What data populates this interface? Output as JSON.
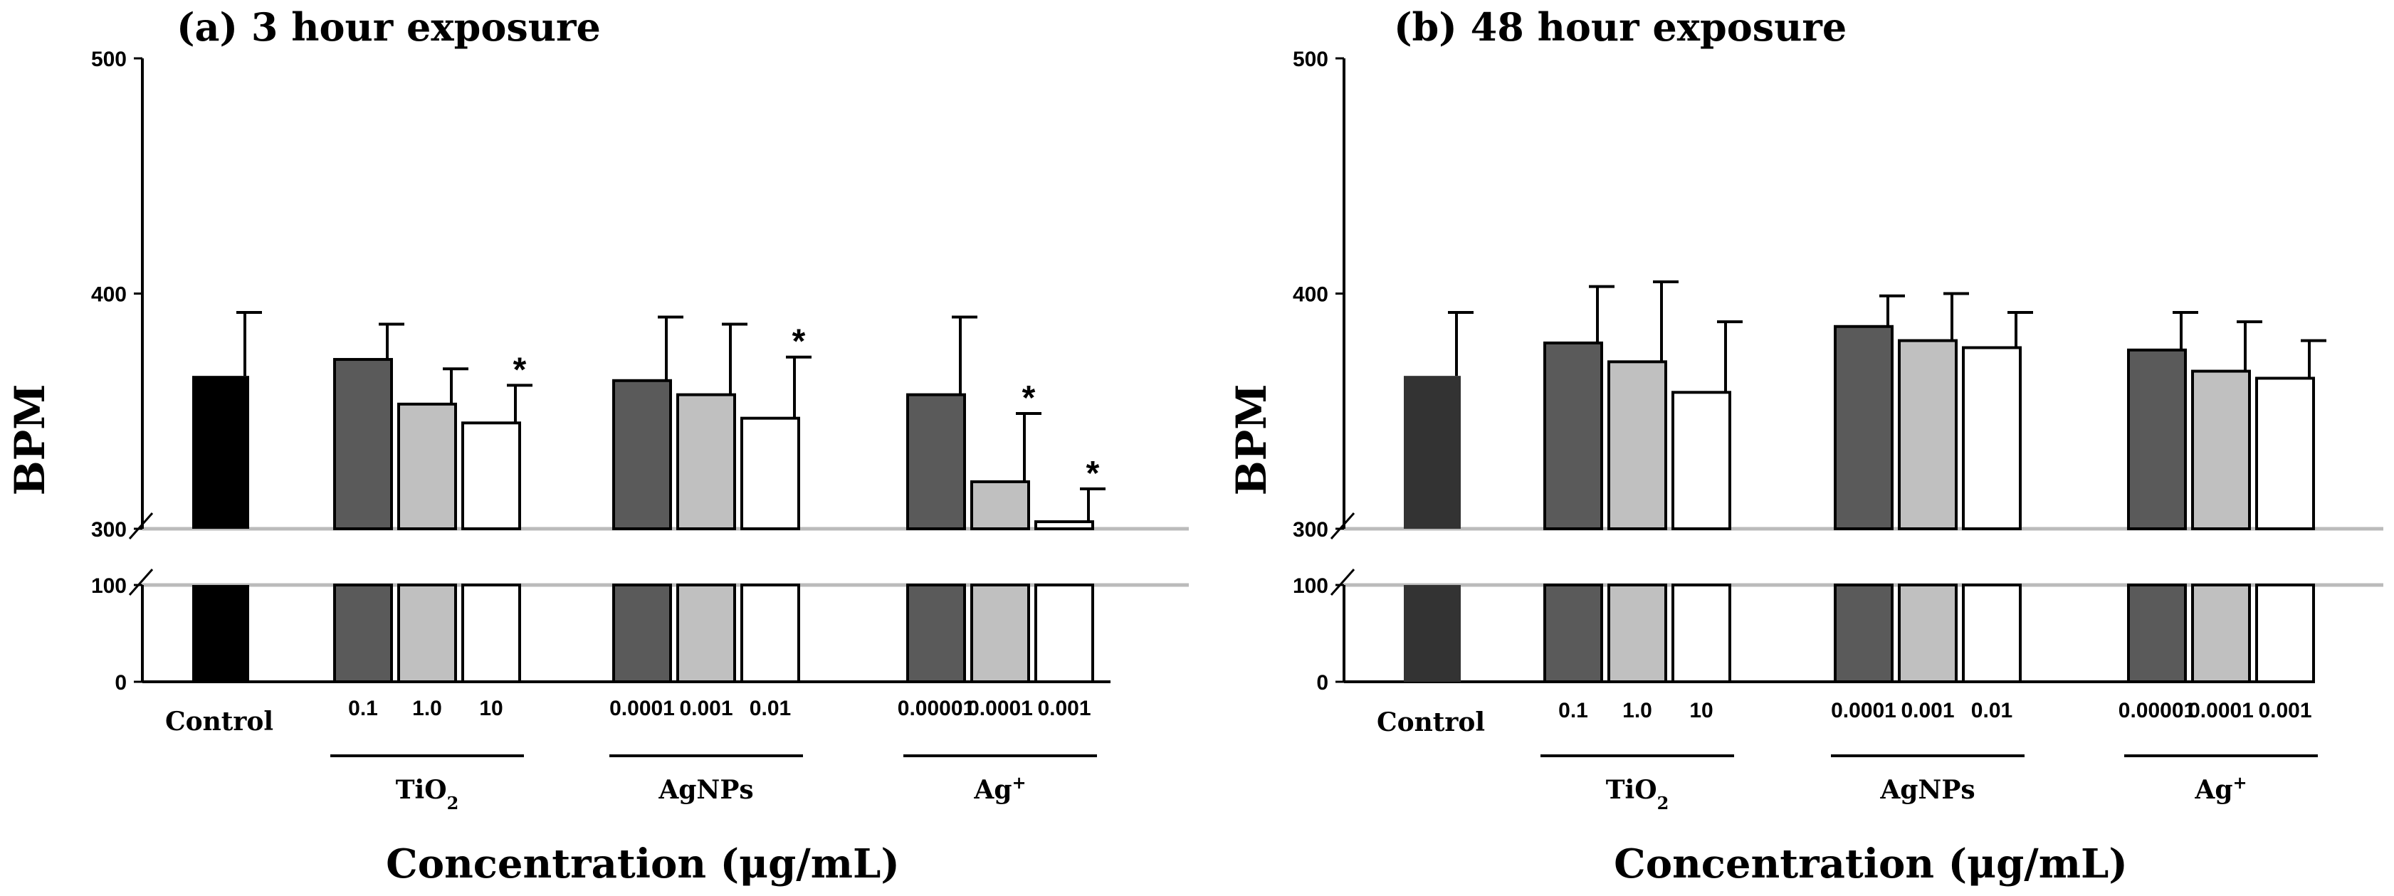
{
  "chart_data": [
    {
      "type": "bar",
      "panel": "a",
      "title": "(a) 3 hour exposure",
      "ylabel": "BPM",
      "xlabel": "Concentration (μg/mL)",
      "yticks_upper": [
        "500",
        "400",
        "300"
      ],
      "yticks_lower": [
        "100",
        "0"
      ],
      "axis_break": true,
      "ylim_upper": [
        300,
        500
      ],
      "ylim_lower": [
        0,
        100
      ],
      "control_label": "Control",
      "groups": [
        {
          "label_main": "TiO",
          "label_sub": "2",
          "label_sup": "",
          "concentrations": [
            "0.1",
            "1.0",
            "10"
          ]
        },
        {
          "label_main": "AgNPs",
          "label_sub": "",
          "label_sup": "",
          "concentrations": [
            "0.0001",
            "0.001",
            "0.01"
          ]
        },
        {
          "label_main": "Ag",
          "label_sub": "",
          "label_sup": "+",
          "concentrations": [
            "0.00001",
            "0.0001",
            "0.001"
          ]
        }
      ],
      "bars": [
        {
          "group": -1,
          "level": 0,
          "value": 365,
          "error": 27,
          "sig": false
        },
        {
          "group": 0,
          "level": 0,
          "value": 372,
          "error": 15,
          "sig": false
        },
        {
          "group": 0,
          "level": 1,
          "value": 353,
          "error": 15,
          "sig": false
        },
        {
          "group": 0,
          "level": 2,
          "value": 345,
          "error": 16,
          "sig": true
        },
        {
          "group": 1,
          "level": 0,
          "value": 363,
          "error": 27,
          "sig": false
        },
        {
          "group": 1,
          "level": 1,
          "value": 357,
          "error": 30,
          "sig": false
        },
        {
          "group": 1,
          "level": 2,
          "value": 347,
          "error": 26,
          "sig": true
        },
        {
          "group": 2,
          "level": 0,
          "value": 357,
          "error": 33,
          "sig": false
        },
        {
          "group": 2,
          "level": 1,
          "value": 320,
          "error": 29,
          "sig": true
        },
        {
          "group": 2,
          "level": 2,
          "value": 303,
          "error": 14,
          "sig": true
        }
      ],
      "significance_marker": "*",
      "fill_colors": {
        "control": "#000000",
        "level0": "#5a5a5a",
        "level1": "#c0c0c0",
        "level2": "#ffffff"
      }
    },
    {
      "type": "bar",
      "panel": "b",
      "title": "(b) 48 hour exposure",
      "ylabel": "BPM",
      "xlabel": "Concentration (μg/mL)",
      "yticks_upper": [
        "500",
        "400",
        "300"
      ],
      "yticks_lower": [
        "100",
        "0"
      ],
      "axis_break": true,
      "ylim_upper": [
        300,
        500
      ],
      "ylim_lower": [
        0,
        100
      ],
      "control_label": "Control",
      "groups": [
        {
          "label_main": "TiO",
          "label_sub": "2",
          "label_sup": "",
          "concentrations": [
            "0.1",
            "1.0",
            "10"
          ]
        },
        {
          "label_main": "AgNPs",
          "label_sub": "",
          "label_sup": "",
          "concentrations": [
            "0.0001",
            "0.001",
            "0.01"
          ]
        },
        {
          "label_main": "Ag",
          "label_sub": "",
          "label_sup": "+",
          "concentrations": [
            "0.00001",
            "0.0001",
            "0.001"
          ]
        }
      ],
      "bars": [
        {
          "group": -1,
          "level": 0,
          "value": 365,
          "error": 27,
          "sig": false
        },
        {
          "group": 0,
          "level": 0,
          "value": 379,
          "error": 24,
          "sig": false
        },
        {
          "group": 0,
          "level": 1,
          "value": 371,
          "error": 34,
          "sig": false
        },
        {
          "group": 0,
          "level": 2,
          "value": 358,
          "error": 30,
          "sig": false
        },
        {
          "group": 1,
          "level": 0,
          "value": 386,
          "error": 13,
          "sig": false
        },
        {
          "group": 1,
          "level": 1,
          "value": 380,
          "error": 20,
          "sig": false
        },
        {
          "group": 1,
          "level": 2,
          "value": 377,
          "error": 15,
          "sig": false
        },
        {
          "group": 2,
          "level": 0,
          "value": 376,
          "error": 16,
          "sig": false
        },
        {
          "group": 2,
          "level": 1,
          "value": 367,
          "error": 21,
          "sig": false
        },
        {
          "group": 2,
          "level": 2,
          "value": 364,
          "error": 16,
          "sig": false
        }
      ],
      "significance_marker": "*",
      "fill_colors": {
        "control": "#333333",
        "level0": "#5a5a5a",
        "level1": "#c0c0c0",
        "level2": "#ffffff"
      }
    }
  ]
}
